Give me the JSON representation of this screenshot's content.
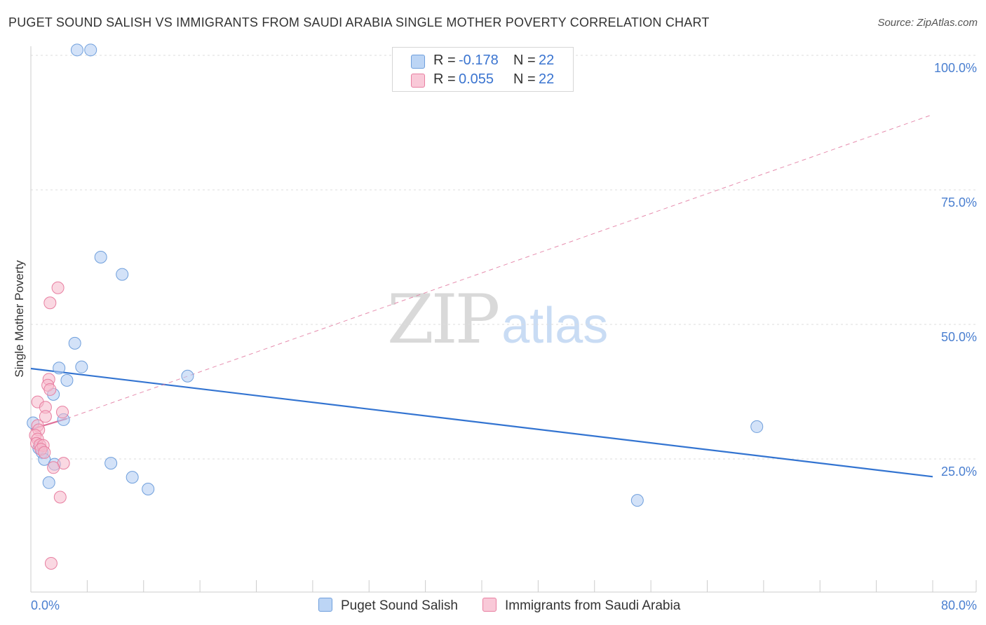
{
  "title": "PUGET SOUND SALISH VS IMMIGRANTS FROM SAUDI ARABIA SINGLE MOTHER POVERTY CORRELATION CHART",
  "source": "Source: ZipAtlas.com",
  "watermark": {
    "zip": "ZIP",
    "atlas": "atlas"
  },
  "legend": {
    "rows": [
      {
        "r_label": "R =",
        "r_value": "-0.178",
        "n_label": "N =",
        "n_value": "22"
      },
      {
        "r_label": "R =",
        "r_value": "0.055",
        "n_label": "N =",
        "n_value": "22"
      }
    ]
  },
  "colors": {
    "blue_fill": "#aecbf2",
    "blue_stroke": "#6f9fdc",
    "blue_line": "#3374d1",
    "pink_fill": "#f6b8cb",
    "pink_stroke": "#e87fa1",
    "pink_line": "#e0719a",
    "grid": "#dddddd",
    "tick_text": "#4a7fd0"
  },
  "chart_data": {
    "type": "scatter",
    "title": "PUGET SOUND SALISH VS IMMIGRANTS FROM SAUDI ARABIA SINGLE MOTHER POVERTY CORRELATION CHART",
    "xlabel": "",
    "ylabel": "Single Mother Poverty",
    "xlim": [
      0,
      80
    ],
    "ylim": [
      0,
      104
    ],
    "x_tick_labels": [
      "0.0%",
      "80.0%"
    ],
    "y_ticks": [
      25,
      50,
      75,
      100
    ],
    "y_tick_labels": [
      "25.0%",
      "50.0%",
      "75.0%",
      "100.0%"
    ],
    "legend_position": "top-center",
    "series": [
      {
        "name": "Puget Sound Salish",
        "color": "#aecbf2",
        "points": [
          {
            "x": 4.1,
            "y": 101.0
          },
          {
            "x": 5.3,
            "y": 101.0
          },
          {
            "x": 6.2,
            "y": 62.5
          },
          {
            "x": 8.1,
            "y": 59.3
          },
          {
            "x": 3.9,
            "y": 46.5
          },
          {
            "x": 2.5,
            "y": 41.9
          },
          {
            "x": 4.5,
            "y": 42.1
          },
          {
            "x": 3.2,
            "y": 39.6
          },
          {
            "x": 2.0,
            "y": 37.0
          },
          {
            "x": 13.9,
            "y": 40.4
          },
          {
            "x": 0.2,
            "y": 31.7
          },
          {
            "x": 2.9,
            "y": 32.3
          },
          {
            "x": 0.7,
            "y": 27.0
          },
          {
            "x": 1.0,
            "y": 26.2
          },
          {
            "x": 1.2,
            "y": 24.9
          },
          {
            "x": 2.1,
            "y": 24.0
          },
          {
            "x": 7.1,
            "y": 24.2
          },
          {
            "x": 1.6,
            "y": 20.6
          },
          {
            "x": 9.0,
            "y": 21.6
          },
          {
            "x": 10.4,
            "y": 19.4
          },
          {
            "x": 64.4,
            "y": 31.0
          },
          {
            "x": 53.8,
            "y": 17.3
          }
        ],
        "trend": {
          "x": [
            0,
            80
          ],
          "y": [
            41.8,
            21.7
          ]
        }
      },
      {
        "name": "Immigrants from Saudi Arabia",
        "color": "#f6b8cb",
        "points": [
          {
            "x": 2.4,
            "y": 56.8
          },
          {
            "x": 1.7,
            "y": 54.0
          },
          {
            "x": 1.6,
            "y": 39.8
          },
          {
            "x": 1.5,
            "y": 38.7
          },
          {
            "x": 1.7,
            "y": 37.9
          },
          {
            "x": 0.6,
            "y": 35.6
          },
          {
            "x": 1.3,
            "y": 34.6
          },
          {
            "x": 2.8,
            "y": 33.7
          },
          {
            "x": 1.3,
            "y": 32.9
          },
          {
            "x": 0.6,
            "y": 31.2
          },
          {
            "x": 0.7,
            "y": 30.4
          },
          {
            "x": 0.4,
            "y": 29.4
          },
          {
            "x": 0.6,
            "y": 28.7
          },
          {
            "x": 0.5,
            "y": 27.9
          },
          {
            "x": 0.8,
            "y": 27.6
          },
          {
            "x": 1.1,
            "y": 27.5
          },
          {
            "x": 0.9,
            "y": 26.8
          },
          {
            "x": 1.2,
            "y": 26.2
          },
          {
            "x": 2.9,
            "y": 24.2
          },
          {
            "x": 2.0,
            "y": 23.4
          },
          {
            "x": 2.6,
            "y": 17.9
          },
          {
            "x": 1.8,
            "y": 5.6
          }
        ],
        "trend_solid": {
          "x": [
            0,
            3.2
          ],
          "y": [
            30.5,
            32.5
          ]
        },
        "trend_dashed": {
          "x": [
            3.2,
            80
          ],
          "y": [
            32.5,
            89.0
          ]
        }
      }
    ]
  },
  "bottom_legend": [
    "Puget Sound Salish",
    "Immigrants from Saudi Arabia"
  ]
}
